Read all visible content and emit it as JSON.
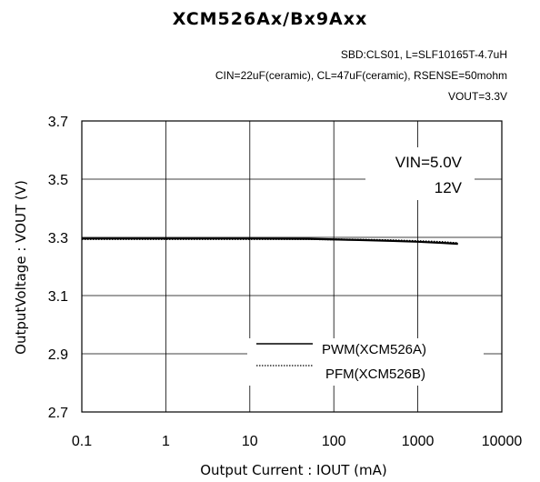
{
  "chart_data": {
    "type": "line",
    "title": "XCM526Ax/Bx9Axx",
    "conditions": [
      "SBD:CLS01, L=SLF10165T-4.7uH",
      "CIN=22uF(ceramic), CL=47uF(ceramic), RSENSE=50mohm",
      "VOUT=3.3V"
    ],
    "xlabel": "Output Current : IOUT (mA)",
    "ylabel": "OutputVoltage : VOUT (V)",
    "xscale": "log",
    "xlim": [
      0.1,
      10000
    ],
    "ylim": [
      2.7,
      3.7
    ],
    "xticks": [
      "0.1",
      "1",
      "10",
      "100",
      "1000",
      "10000"
    ],
    "xtick_values": [
      0.1,
      1,
      10,
      100,
      1000,
      10000
    ],
    "yticks": [
      "2.7",
      "2.9",
      "3.1",
      "3.3",
      "3.5",
      "3.7"
    ],
    "ytick_values": [
      2.7,
      2.9,
      3.1,
      3.3,
      3.5,
      3.7
    ],
    "grid": true,
    "annotations": [
      "VIN=5.0V",
      "12V"
    ],
    "legend": {
      "placement": "bottom-right",
      "entries": [
        {
          "label": "PWM(XCM526A)",
          "style": "solid"
        },
        {
          "label": "PFM(XCM526B)",
          "style": "dotted"
        }
      ]
    },
    "series": [
      {
        "name": "PWM(XCM526A)",
        "vin": "5.0V",
        "style": "solid",
        "x": [
          0.1,
          1,
          10,
          50,
          100,
          200,
          500,
          1000,
          2000,
          3000
        ],
        "y": [
          3.295,
          3.295,
          3.295,
          3.294,
          3.292,
          3.29,
          3.287,
          3.284,
          3.28,
          3.277
        ]
      },
      {
        "name": "PWM(XCM526A)",
        "vin": "12V",
        "style": "solid",
        "x": [
          0.1,
          1,
          10,
          50,
          100,
          200,
          500,
          1000,
          2000,
          3000
        ],
        "y": [
          3.297,
          3.297,
          3.297,
          3.296,
          3.294,
          3.292,
          3.289,
          3.286,
          3.282,
          3.279
        ]
      },
      {
        "name": "PFM(XCM526B)",
        "vin": "5.0V",
        "style": "dotted",
        "x": [
          0.1,
          1,
          10,
          50,
          100,
          200,
          500,
          1000,
          2000,
          3000
        ],
        "y": [
          3.293,
          3.293,
          3.293,
          3.293,
          3.292,
          3.291,
          3.29,
          3.287,
          3.283,
          3.279
        ]
      },
      {
        "name": "PFM(XCM526B)",
        "vin": "12V",
        "style": "dotted",
        "x": [
          0.1,
          1,
          10,
          50,
          100,
          200,
          500,
          1000,
          2000,
          3000
        ],
        "y": [
          3.296,
          3.296,
          3.296,
          3.295,
          3.294,
          3.293,
          3.291,
          3.288,
          3.285,
          3.281
        ]
      }
    ]
  }
}
